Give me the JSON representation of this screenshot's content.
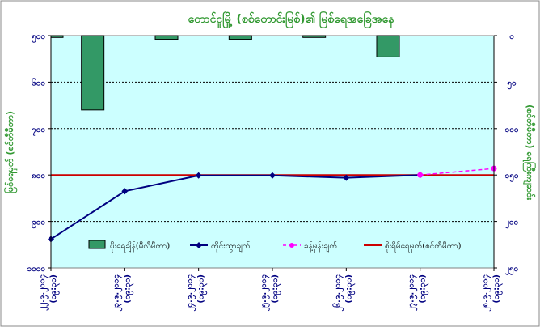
{
  "chart_data": {
    "type": "bar+line",
    "title": "တောင်ငူမြို့ (စစ်တောင်းမြစ်)၏ မြစ်ရေအခြေအနေ",
    "ylabel_left": "မြစ်ရေမှတ် (စင်တီမီတာ)",
    "ylabel_right": "(စင်တီမီတာ) ရေကြီးကျဆင်း",
    "categories": [
      "၂၂.၉.၂၀၁၄ (၀၉:၃၀)",
      "၂၃.၉.၂၀၁၄ (၀၉:၃၀)",
      "၂၄.၉.၂၀၁၄ (၀၉:၃၀)",
      "၂၅.၉.၂၀၁၄ (၀၉:၃၀)",
      "၂၆.၉.၂၀၁၄ (၀၉:၃၀)",
      "၂၇.၉.၂၀၁၄ (၀၉:၃၀)",
      "၂၈.၉.၂၀၁၄ (၀၉:၃၀)"
    ],
    "left_axis": {
      "ylim": [
        500,
        1000
      ],
      "ticks": [
        "၅၀၀",
        "၆၀၀",
        "၇၀၀",
        "၈၀၀",
        "၉၀၀",
        "၁၀၀၀"
      ]
    },
    "right_axis": {
      "ylim": [
        0,
        250
      ],
      "ticks": [
        "၀",
        "၅၀",
        "၁၀၀",
        "၁၅၀",
        "၂၀၀",
        "၂၅၀"
      ]
    },
    "series": [
      {
        "name": "ပိုးရေချိန်(မီလီမီတာ)",
        "type": "bar",
        "axis": "right",
        "color": "#339966",
        "values": [
          2,
          80,
          4,
          4,
          2,
          23,
          null
        ]
      },
      {
        "name": "တိုင်းထွာချက်",
        "type": "line",
        "axis": "left",
        "color": "#000080",
        "marker": "diamond",
        "values": [
          938,
          835,
          801,
          801,
          806,
          800,
          null
        ]
      },
      {
        "name": "ခန့်မှန်းချက်",
        "type": "line-dashed",
        "axis": "left",
        "color": "#ff00ff",
        "marker": "circle",
        "values": [
          null,
          null,
          null,
          null,
          null,
          800,
          786
        ]
      },
      {
        "name": "စိုးရိမ်ရေမှတ်(စင်တီမီတာ)",
        "type": "hline",
        "axis": "left",
        "color": "#cc0000",
        "value": 800
      }
    ],
    "grid": true,
    "legend_position": "bottom-inside"
  }
}
